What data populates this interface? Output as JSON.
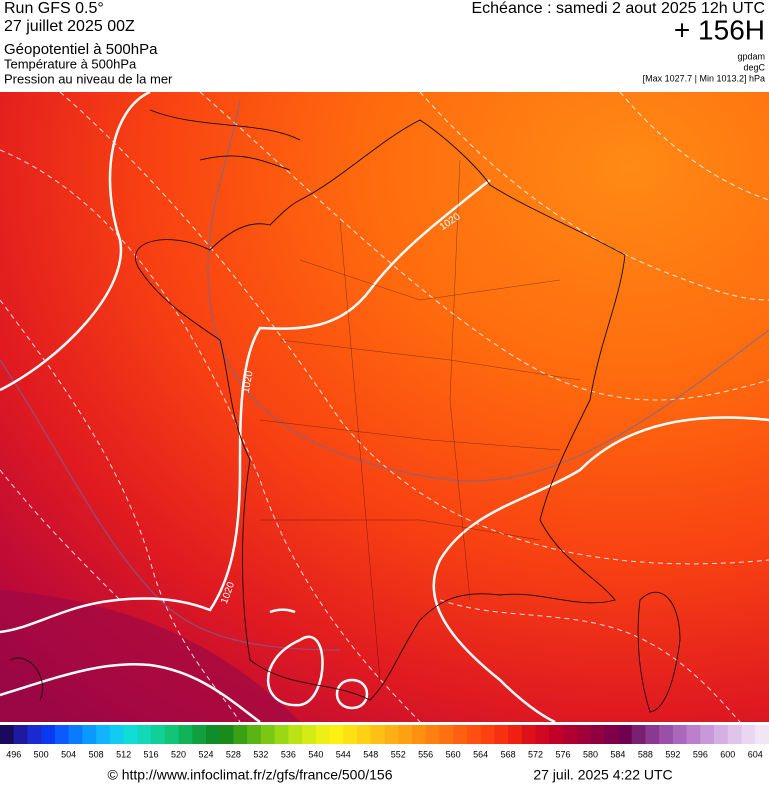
{
  "header": {
    "run": "Run GFS 0.5°",
    "date": "27 juillet 2025 00Z",
    "field": "Géopotentiel à 500hPa",
    "field2": "Température à 500hPa",
    "field3": "Pression au niveau de la mer",
    "valid": "Echéance : samedi 2 aout 2025 12h UTC",
    "lead": "+ 156H",
    "unit1": "gpdam",
    "unit2": "degC",
    "range": "[Max 1027.7 | Min 1013.2] hPa"
  },
  "map": {
    "contour_labels": [
      "1020",
      "1020",
      "1020"
    ]
  },
  "colorbar": {
    "labels": [
      496,
      500,
      504,
      508,
      512,
      516,
      520,
      524,
      528,
      532,
      536,
      540,
      544,
      548,
      552,
      556,
      560,
      564,
      568,
      572,
      576,
      580,
      584,
      588,
      592,
      596,
      600,
      604
    ],
    "colors": [
      "#1a0a5e",
      "#1e1aa0",
      "#1a2ad0",
      "#0a3af0",
      "#0a5aff",
      "#0a7aff",
      "#0a9aff",
      "#10b4ff",
      "#10ccf0",
      "#10dcd8",
      "#10d8b8",
      "#10d098",
      "#10c478",
      "#10b458",
      "#10a040",
      "#108c28",
      "#1a8a1a",
      "#3aa014",
      "#5ab414",
      "#7ac814",
      "#9ad814",
      "#b8e414",
      "#d4ec14",
      "#ecf014",
      "#fff014",
      "#ffe014",
      "#ffd014",
      "#ffc014",
      "#ffb014",
      "#ffa014",
      "#ff9010",
      "#ff8010",
      "#ff7010",
      "#ff6010",
      "#ff5010",
      "#ff4010",
      "#f83010",
      "#f02010",
      "#e01018",
      "#d00820",
      "#c00028",
      "#b00030",
      "#a00038",
      "#900040",
      "#800048",
      "#700050",
      "#7a2070",
      "#8a3890",
      "#9a50a8",
      "#aa68bc",
      "#ba80cc",
      "#c898d8",
      "#d4b0e2",
      "#e0c4ea",
      "#ead6f0",
      "#f2e6f6"
    ]
  },
  "footer": {
    "url": "© http://www.infoclimat.fr/z/gfs/france/500/156",
    "stamp": "27 juil. 2025  4:22 UTC"
  }
}
